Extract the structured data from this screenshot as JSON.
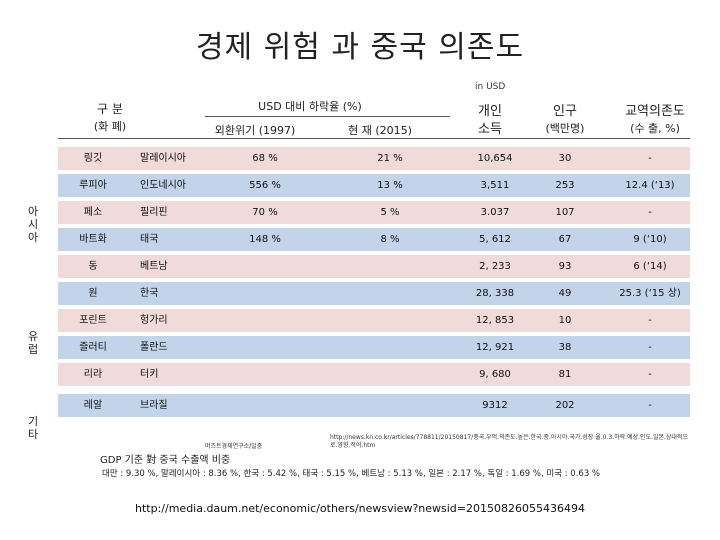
{
  "title": "경제 위험 과 중국 의존도",
  "unit": "in USD",
  "header": {
    "category_line1": "구    분",
    "category_line2": "(화    폐)",
    "depreciation": "USD 대비 하락율 (%)",
    "crisis_1997": "외환위기 (1997)",
    "current_2015": "현    재 (2015)",
    "income_line1": "개인",
    "income_line2": "소득",
    "pop_line1": "인구",
    "pop_line2": "(백만명)",
    "trade_line1": "교역의존도",
    "trade_line2": "(수    출, %)"
  },
  "regions": {
    "asia": [
      "아",
      "시",
      "아"
    ],
    "europe": [
      "유",
      "럽"
    ],
    "other": [
      "기",
      "타"
    ]
  },
  "rows": [
    {
      "currency": "링깃",
      "country": "말레이시아",
      "crisis": "68 %",
      "current": "21 %",
      "income": "10,654",
      "pop": "30",
      "trade": "-",
      "color": "pink"
    },
    {
      "currency": "루피아",
      "country": "인도네시아",
      "crisis": "556 %",
      "current": "13 %",
      "income": "3,511",
      "pop": "253",
      "trade": "12.4 (‘13)",
      "color": "blue"
    },
    {
      "currency": "페소",
      "country": "필리핀",
      "crisis": "70 %",
      "current": "5 %",
      "income": "3.037",
      "pop": "107",
      "trade": "-",
      "color": "pink"
    },
    {
      "currency": "바트화",
      "country": "태국",
      "crisis": "148 %",
      "current": "8 %",
      "income": "5, 612",
      "pop": "67",
      "trade": "9 (‘10)",
      "color": "blue"
    },
    {
      "currency": "동",
      "country": "베트남",
      "crisis": "",
      "current": "",
      "income": "2, 233",
      "pop": "93",
      "trade": "6 (‘14)",
      "color": "pink"
    },
    {
      "currency": "원",
      "country": "한국",
      "crisis": "",
      "current": "",
      "income": "28, 338",
      "pop": "49",
      "trade": "25.3 (‘15 상)",
      "color": "blue"
    },
    {
      "currency": "포린트",
      "country": "헝가리",
      "crisis": "",
      "current": "",
      "income": "12, 853",
      "pop": "10",
      "trade": "-",
      "color": "pink"
    },
    {
      "currency": "즐러티",
      "country": "폴란드",
      "crisis": "",
      "current": "",
      "income": "12, 921",
      "pop": "38",
      "trade": "-",
      "color": "blue"
    },
    {
      "currency": "리라",
      "country": "터키",
      "crisis": "",
      "current": "",
      "income": "9, 680",
      "pop": "81",
      "trade": "-",
      "color": "pink"
    },
    {
      "currency": "레알",
      "country": "브라질",
      "crisis": "",
      "current": "",
      "income": "9312",
      "pop": "202",
      "trade": "-",
      "color": "blue"
    }
  ],
  "footnote": {
    "source_small": "머즈트경제연구소/일중",
    "gdp_label": "GDP 기준 對 중국 수출액 비중",
    "link_small": "http://news.kn.co.kr/articles/778811/20150817/중국.우먹.의존도.높은.한국.중.아시아.국가.성장 율.0.3.하락.예상.인도.일본.상대적으로.영향.적어.htm",
    "ratios": "대만 : 9.30 %, 말레이시아 : 8.36 %, 한국 : 5.42 %, 태국 : 5.15 %, 베트남 : 5.13 %, 일본 : 2.17 %, 독일 : 1.69 %, 미국 : 0.63 %"
  },
  "source_url": "http://media.daum.net/economic/others/newsview?newsid=20150826055436494",
  "colors": {
    "pink": "#f1dada",
    "blue": "#c2d3ea"
  }
}
